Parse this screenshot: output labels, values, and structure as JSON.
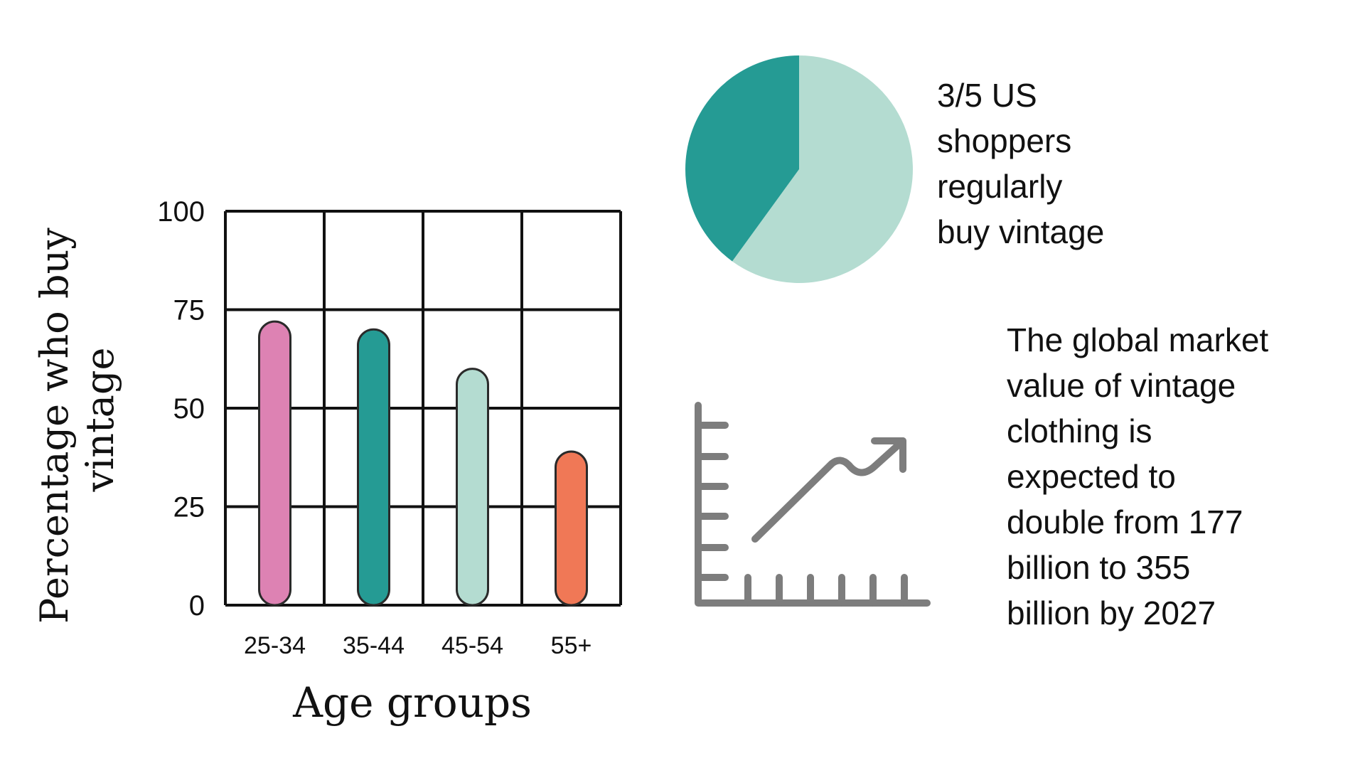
{
  "chart_data": [
    {
      "type": "bar",
      "categories": [
        "25-34",
        "35-44",
        "45-54",
        "55+"
      ],
      "values": [
        72,
        70,
        60,
        39
      ],
      "colors": [
        "#dd82b3",
        "#259b94",
        "#b4dcd1",
        "#f07856"
      ],
      "xlabel": "Age groups",
      "ylabel": "Percentage who buy vintage",
      "ylim": [
        0,
        100
      ],
      "yticks": [
        0,
        25,
        50,
        75,
        100
      ],
      "grid": true
    },
    {
      "type": "pie",
      "slices": [
        {
          "value": 3,
          "color": "#b4dcd1"
        },
        {
          "value": 2,
          "color": "#259b94"
        }
      ]
    }
  ],
  "facts": {
    "pie_caption": "3/5 US\nshoppers\nregularly\nbuy vintage",
    "market_text": "The global market\nvalue of vintage\nclothing is\nexpected to\ndouble from 177\nbillion to 355\nbillion by 2027"
  },
  "icons": {
    "growth": "growth-chart-icon"
  },
  "colors": {
    "ink": "#111111",
    "icon_gray": "#7d7d7d"
  }
}
